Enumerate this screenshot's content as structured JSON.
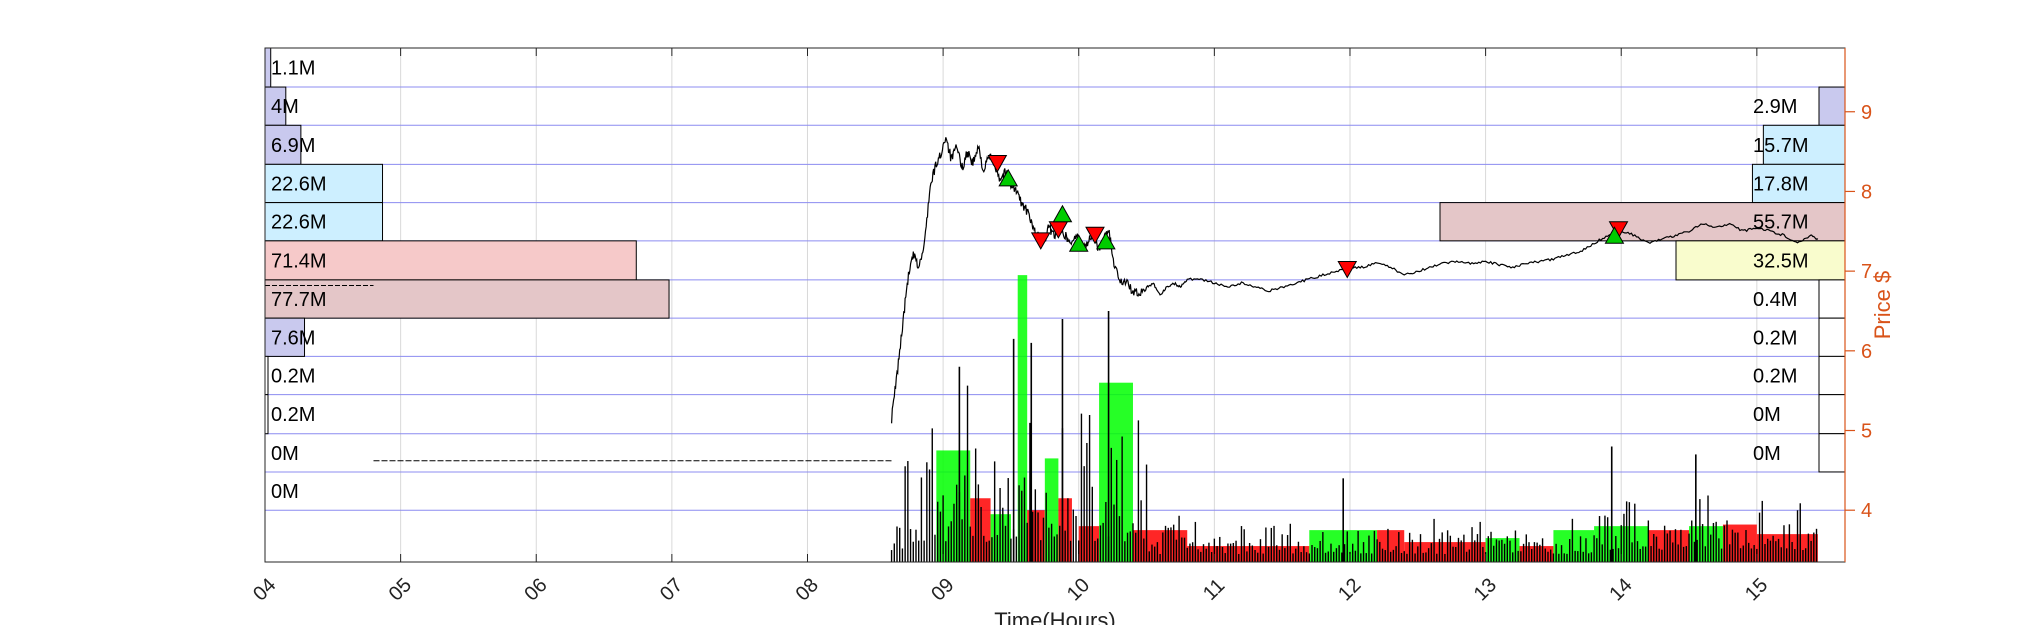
{
  "colors": {
    "price_axis": "#d95319",
    "grid_v": "#d9d9d9",
    "grid_h": "#8c8cf0",
    "price_line": "#000000",
    "vol_black": "#000000",
    "vol_red": "#ff0000",
    "vol_green": "#00ff00",
    "prof_lavender": "#c9c9ee",
    "prof_cyan": "#cdefff",
    "prof_pink": "#f6c9c9",
    "prof_mauve": "#e4c6c8",
    "prof_yellow": "#f9fccd",
    "marker_buy": "#00cc00",
    "marker_sell": "#ff0000"
  },
  "chart_data": {
    "type": "line",
    "xlabel": "Time(Hours)",
    "ylabel": "Price $",
    "xlim": [
      4.0,
      15.65
    ],
    "ylim": [
      3.35,
      9.8
    ],
    "x_ticks": [
      4,
      5,
      6,
      7,
      8,
      9,
      10,
      11,
      12,
      13,
      14,
      15
    ],
    "x_tick_labels": [
      "04",
      "05",
      "06",
      "07",
      "08",
      "09",
      "10",
      "11",
      "12",
      "13",
      "14",
      "15"
    ],
    "y_ticks": [
      4,
      5,
      6,
      7,
      8,
      9
    ],
    "y_tick_labels": [
      "4",
      "5",
      "6",
      "7",
      "8",
      "9"
    ],
    "price_bins": [
      {
        "low": 9.31,
        "high": 9.8,
        "left": "1.1M",
        "left_value": 1.1,
        "right": "",
        "right_value": 0
      },
      {
        "low": 8.83,
        "high": 9.31,
        "left": "4M",
        "left_value": 4.0,
        "right": "2.9M",
        "right_value": 2.9
      },
      {
        "low": 8.34,
        "high": 8.83,
        "left": "6.9M",
        "left_value": 6.9,
        "right": "15.7M",
        "right_value": 15.7
      },
      {
        "low": 7.86,
        "high": 8.34,
        "left": "22.6M",
        "left_value": 22.6,
        "right": "17.8M",
        "right_value": 17.8
      },
      {
        "low": 7.38,
        "high": 7.86,
        "left": "22.6M",
        "left_value": 22.6,
        "right": "55.7M",
        "right_value": 55.7
      },
      {
        "low": 6.89,
        "high": 7.38,
        "left": "71.4M",
        "left_value": 71.4,
        "right": "32.5M",
        "right_value": 32.5
      },
      {
        "low": 6.41,
        "high": 6.89,
        "left": "77.7M",
        "left_value": 77.7,
        "right": "0.4M",
        "right_value": 0.4
      },
      {
        "low": 5.93,
        "high": 6.41,
        "left": "7.6M",
        "left_value": 7.6,
        "right": "0.2M",
        "right_value": 0.2
      },
      {
        "low": 5.45,
        "high": 5.93,
        "left": "0.2M",
        "left_value": 0.2,
        "right": "0.2M",
        "right_value": 0.2
      },
      {
        "low": 4.96,
        "high": 5.45,
        "left": "0.2M",
        "left_value": 0.2,
        "right": "0M",
        "right_value": 0
      },
      {
        "low": 4.48,
        "high": 4.96,
        "left": "0M",
        "left_value": 0,
        "right": "0M",
        "right_value": 0
      },
      {
        "low": 4.0,
        "high": 4.48,
        "left": "0M",
        "left_value": 0,
        "right": "",
        "right_value": 0
      }
    ],
    "price_series": [
      [
        8.62,
        5.15
      ],
      [
        8.66,
        5.7
      ],
      [
        8.7,
        6.3
      ],
      [
        8.74,
        6.9
      ],
      [
        8.78,
        7.2
      ],
      [
        8.82,
        7.05
      ],
      [
        8.86,
        7.3
      ],
      [
        8.9,
        8.0
      ],
      [
        8.94,
        8.3
      ],
      [
        8.98,
        8.45
      ],
      [
        9.02,
        8.7
      ],
      [
        9.06,
        8.4
      ],
      [
        9.1,
        8.55
      ],
      [
        9.14,
        8.3
      ],
      [
        9.18,
        8.5
      ],
      [
        9.22,
        8.35
      ],
      [
        9.26,
        8.55
      ],
      [
        9.3,
        8.25
      ],
      [
        9.34,
        8.45
      ],
      [
        9.38,
        8.35
      ],
      [
        9.42,
        8.15
      ],
      [
        9.46,
        8.25
      ],
      [
        9.5,
        8.1
      ],
      [
        9.54,
        8.0
      ],
      [
        9.58,
        7.85
      ],
      [
        9.62,
        7.75
      ],
      [
        9.66,
        7.55
      ],
      [
        9.7,
        7.45
      ],
      [
        9.74,
        7.35
      ],
      [
        9.78,
        7.55
      ],
      [
        9.82,
        7.45
      ],
      [
        9.86,
        7.6
      ],
      [
        9.9,
        7.45
      ],
      [
        9.94,
        7.35
      ],
      [
        9.98,
        7.45
      ],
      [
        10.02,
        7.3
      ],
      [
        10.06,
        7.35
      ],
      [
        10.1,
        7.45
      ],
      [
        10.14,
        7.3
      ],
      [
        10.18,
        7.35
      ],
      [
        10.22,
        7.55
      ],
      [
        10.26,
        7.1
      ],
      [
        10.3,
        6.9
      ],
      [
        10.35,
        6.85
      ],
      [
        10.4,
        6.75
      ],
      [
        10.45,
        6.7
      ],
      [
        10.5,
        6.8
      ],
      [
        10.55,
        6.85
      ],
      [
        10.6,
        6.7
      ],
      [
        10.65,
        6.8
      ],
      [
        10.7,
        6.85
      ],
      [
        10.75,
        6.8
      ],
      [
        10.8,
        6.9
      ],
      [
        10.9,
        6.9
      ],
      [
        11.0,
        6.85
      ],
      [
        11.1,
        6.8
      ],
      [
        11.2,
        6.85
      ],
      [
        11.3,
        6.8
      ],
      [
        11.4,
        6.75
      ],
      [
        11.5,
        6.8
      ],
      [
        11.6,
        6.85
      ],
      [
        11.7,
        6.9
      ],
      [
        11.8,
        6.95
      ],
      [
        11.9,
        7.0
      ],
      [
        12.0,
        7.05
      ],
      [
        12.1,
        7.05
      ],
      [
        12.2,
        7.1
      ],
      [
        12.3,
        7.05
      ],
      [
        12.4,
        6.95
      ],
      [
        12.5,
        7.0
      ],
      [
        12.6,
        7.05
      ],
      [
        12.7,
        7.1
      ],
      [
        12.8,
        7.12
      ],
      [
        12.9,
        7.1
      ],
      [
        13.0,
        7.12
      ],
      [
        13.1,
        7.08
      ],
      [
        13.2,
        7.05
      ],
      [
        13.3,
        7.1
      ],
      [
        13.4,
        7.12
      ],
      [
        13.5,
        7.15
      ],
      [
        13.6,
        7.2
      ],
      [
        13.7,
        7.25
      ],
      [
        13.8,
        7.35
      ],
      [
        13.9,
        7.45
      ],
      [
        14.0,
        7.5
      ],
      [
        14.1,
        7.45
      ],
      [
        14.2,
        7.35
      ],
      [
        14.3,
        7.4
      ],
      [
        14.4,
        7.45
      ],
      [
        14.5,
        7.5
      ],
      [
        14.6,
        7.6
      ],
      [
        14.7,
        7.55
      ],
      [
        14.8,
        7.6
      ],
      [
        14.9,
        7.5
      ],
      [
        15.0,
        7.55
      ],
      [
        15.1,
        7.5
      ],
      [
        15.2,
        7.45
      ],
      [
        15.3,
        7.35
      ],
      [
        15.4,
        7.45
      ],
      [
        15.45,
        7.4
      ]
    ],
    "sell_markers": [
      [
        9.4,
        8.35
      ],
      [
        9.72,
        7.38
      ],
      [
        9.85,
        7.52
      ],
      [
        10.12,
        7.45
      ],
      [
        11.98,
        7.02
      ],
      [
        13.98,
        7.52
      ]
    ],
    "buy_markers": [
      [
        9.48,
        8.17
      ],
      [
        9.88,
        7.72
      ],
      [
        10.0,
        7.35
      ],
      [
        10.2,
        7.38
      ],
      [
        13.95,
        7.45
      ]
    ]
  }
}
